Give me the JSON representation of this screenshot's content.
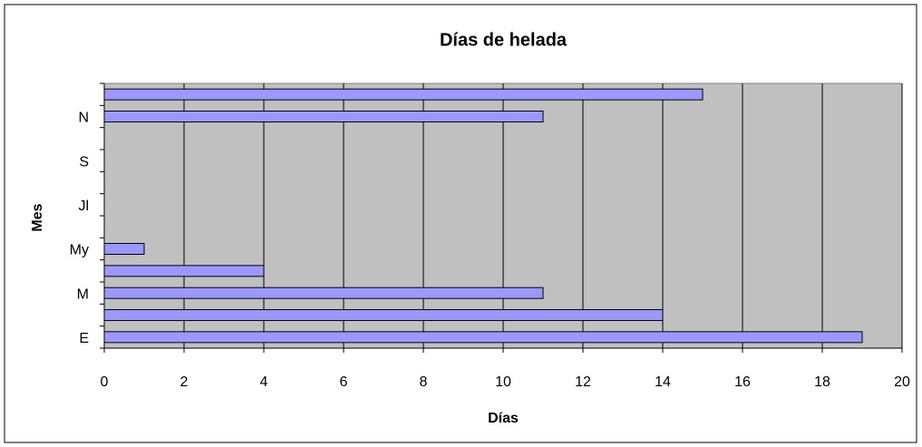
{
  "chart_data": {
    "type": "bar",
    "orientation": "horizontal",
    "title": "Días de helada",
    "x_label": "Días",
    "y_label": "Mes",
    "categories": [
      "E",
      null,
      "M",
      null,
      "My",
      null,
      "Jl",
      null,
      "S",
      null,
      "N",
      null
    ],
    "values": [
      19,
      14,
      11,
      4,
      1,
      0,
      0,
      0,
      0,
      0,
      11,
      15
    ],
    "color": "#9999ff",
    "xlim": [
      0,
      20
    ],
    "xticks": [
      0,
      2,
      4,
      6,
      8,
      10,
      12,
      14,
      16,
      18,
      20
    ],
    "grid": true
  }
}
